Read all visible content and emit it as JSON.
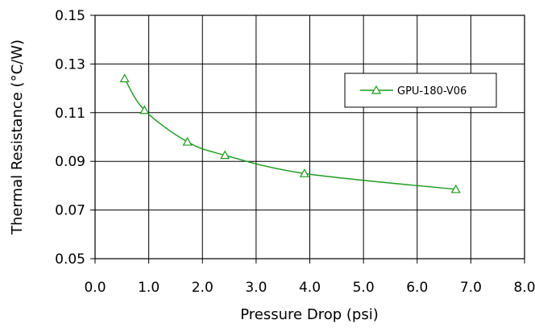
{
  "chart_data": {
    "type": "line",
    "title": "",
    "xlabel": "Pressure Drop (psi)",
    "ylabel": "Thermal Resistance (°C/W)",
    "xlim": [
      0.0,
      8.0
    ],
    "ylim": [
      0.05,
      0.15
    ],
    "x_ticks": [
      "0.0",
      "1.0",
      "2.0",
      "3.0",
      "4.0",
      "5.0",
      "6.0",
      "7.0",
      "8.0"
    ],
    "y_ticks": [
      "0.05",
      "0.07",
      "0.09",
      "0.11",
      "0.13",
      "0.15"
    ],
    "grid": true,
    "legend_position": "top-right",
    "series": [
      {
        "name": "GPU-180-V06",
        "color": "#1a9a1a",
        "marker": "open-triangle",
        "smooth": true,
        "x": [
          0.55,
          0.92,
          1.72,
          2.42,
          3.9,
          6.72
        ],
        "y": [
          0.124,
          0.111,
          0.098,
          0.0925,
          0.085,
          0.0785
        ]
      }
    ]
  }
}
